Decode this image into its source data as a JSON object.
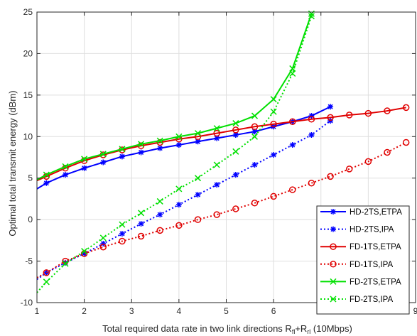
{
  "chart_data": {
    "type": "line",
    "title": "",
    "xlabel_main": "Total required data rate in two link directions R",
    "xlabel_sub1": "fl",
    "xlabel_plus": "+R",
    "xlabel_sub2": "rl",
    "xlabel_tail": " (10Mbps)",
    "ylabel": "Optimal total transmit energy (dBm)",
    "xlim": [
      1,
      9
    ],
    "ylim": [
      -10,
      25
    ],
    "xticks": [
      1,
      2,
      3,
      4,
      5,
      6,
      7,
      8,
      9
    ],
    "yticks": [
      -10,
      -5,
      0,
      5,
      10,
      15,
      20,
      25
    ],
    "grid": true,
    "legend_position": "bottom-right",
    "series": [
      {
        "name": "HD-2TS,ETPA",
        "color": "#0000ff",
        "style": "solid",
        "marker": "asterisk",
        "x": [
          1.0,
          1.2,
          1.6,
          2.0,
          2.4,
          2.8,
          3.2,
          3.6,
          4.0,
          4.4,
          4.8,
          5.2,
          5.6,
          6.0,
          6.4,
          6.8,
          7.2
        ],
        "y": [
          3.7,
          4.4,
          5.4,
          6.2,
          6.9,
          7.6,
          8.1,
          8.6,
          9.0,
          9.4,
          9.8,
          10.2,
          10.6,
          11.2,
          11.8,
          12.5,
          13.6
        ]
      },
      {
        "name": "HD-2TS,IPA",
        "color": "#0000ff",
        "style": "dotted",
        "marker": "asterisk",
        "x": [
          1.0,
          1.2,
          1.6,
          2.0,
          2.4,
          2.8,
          3.2,
          3.6,
          4.0,
          4.4,
          4.8,
          5.2,
          5.6,
          6.0,
          6.4,
          6.8,
          7.2
        ],
        "y": [
          -7.2,
          -6.4,
          -5.2,
          -4.1,
          -2.9,
          -1.7,
          -0.5,
          0.6,
          1.8,
          3.0,
          4.2,
          5.4,
          6.6,
          7.8,
          9.0,
          10.2,
          11.9
        ]
      },
      {
        "name": "FD-1TS,ETPA",
        "color": "#e00000",
        "style": "solid",
        "marker": "circle",
        "x": [
          1.0,
          1.2,
          1.6,
          2.0,
          2.4,
          2.8,
          3.2,
          3.6,
          4.0,
          4.4,
          4.8,
          5.2,
          5.6,
          6.0,
          6.4,
          6.8,
          7.2,
          7.6,
          8.0,
          8.4,
          8.8
        ],
        "y": [
          4.7,
          5.2,
          6.2,
          7.1,
          7.8,
          8.4,
          8.9,
          9.3,
          9.7,
          10.0,
          10.4,
          10.8,
          11.2,
          11.5,
          11.8,
          12.1,
          12.3,
          12.6,
          12.8,
          13.1,
          13.5
        ]
      },
      {
        "name": "FD-1TS,IPA",
        "color": "#e00000",
        "style": "dotted",
        "marker": "circle",
        "x": [
          1.0,
          1.2,
          1.6,
          2.0,
          2.4,
          2.8,
          3.2,
          3.6,
          4.0,
          4.4,
          4.8,
          5.2,
          5.6,
          6.0,
          6.4,
          6.8,
          7.2,
          7.6,
          8.0,
          8.4,
          8.8
        ],
        "y": [
          -7.0,
          -6.4,
          -5.0,
          -4.1,
          -3.3,
          -2.6,
          -2.0,
          -1.3,
          -0.7,
          0.0,
          0.6,
          1.3,
          2.0,
          2.8,
          3.6,
          4.4,
          5.2,
          6.1,
          7.0,
          8.1,
          9.3
        ]
      },
      {
        "name": "FD-2TS,ETPA",
        "color": "#00e000",
        "style": "solid",
        "marker": "x",
        "x": [
          1.0,
          1.2,
          1.6,
          2.0,
          2.4,
          2.8,
          3.2,
          3.6,
          4.0,
          4.4,
          4.8,
          5.2,
          5.6,
          6.0,
          6.4,
          6.8
        ],
        "y": [
          4.8,
          5.4,
          6.4,
          7.3,
          7.9,
          8.5,
          9.1,
          9.5,
          10.0,
          10.4,
          11.0,
          11.6,
          12.5,
          14.5,
          18.2,
          24.8
        ]
      },
      {
        "name": "FD-2TS,IPA",
        "color": "#00e000",
        "style": "dotted",
        "marker": "x",
        "x": [
          1.0,
          1.2,
          1.6,
          2.0,
          2.4,
          2.8,
          3.2,
          3.6,
          4.0,
          4.4,
          4.8,
          5.2,
          5.6,
          6.0,
          6.4,
          6.8
        ],
        "y": [
          -8.8,
          -7.5,
          -5.3,
          -3.8,
          -2.2,
          -0.6,
          0.8,
          2.2,
          3.7,
          5.0,
          6.6,
          8.2,
          10.0,
          13.0,
          17.6,
          24.5
        ]
      }
    ]
  }
}
